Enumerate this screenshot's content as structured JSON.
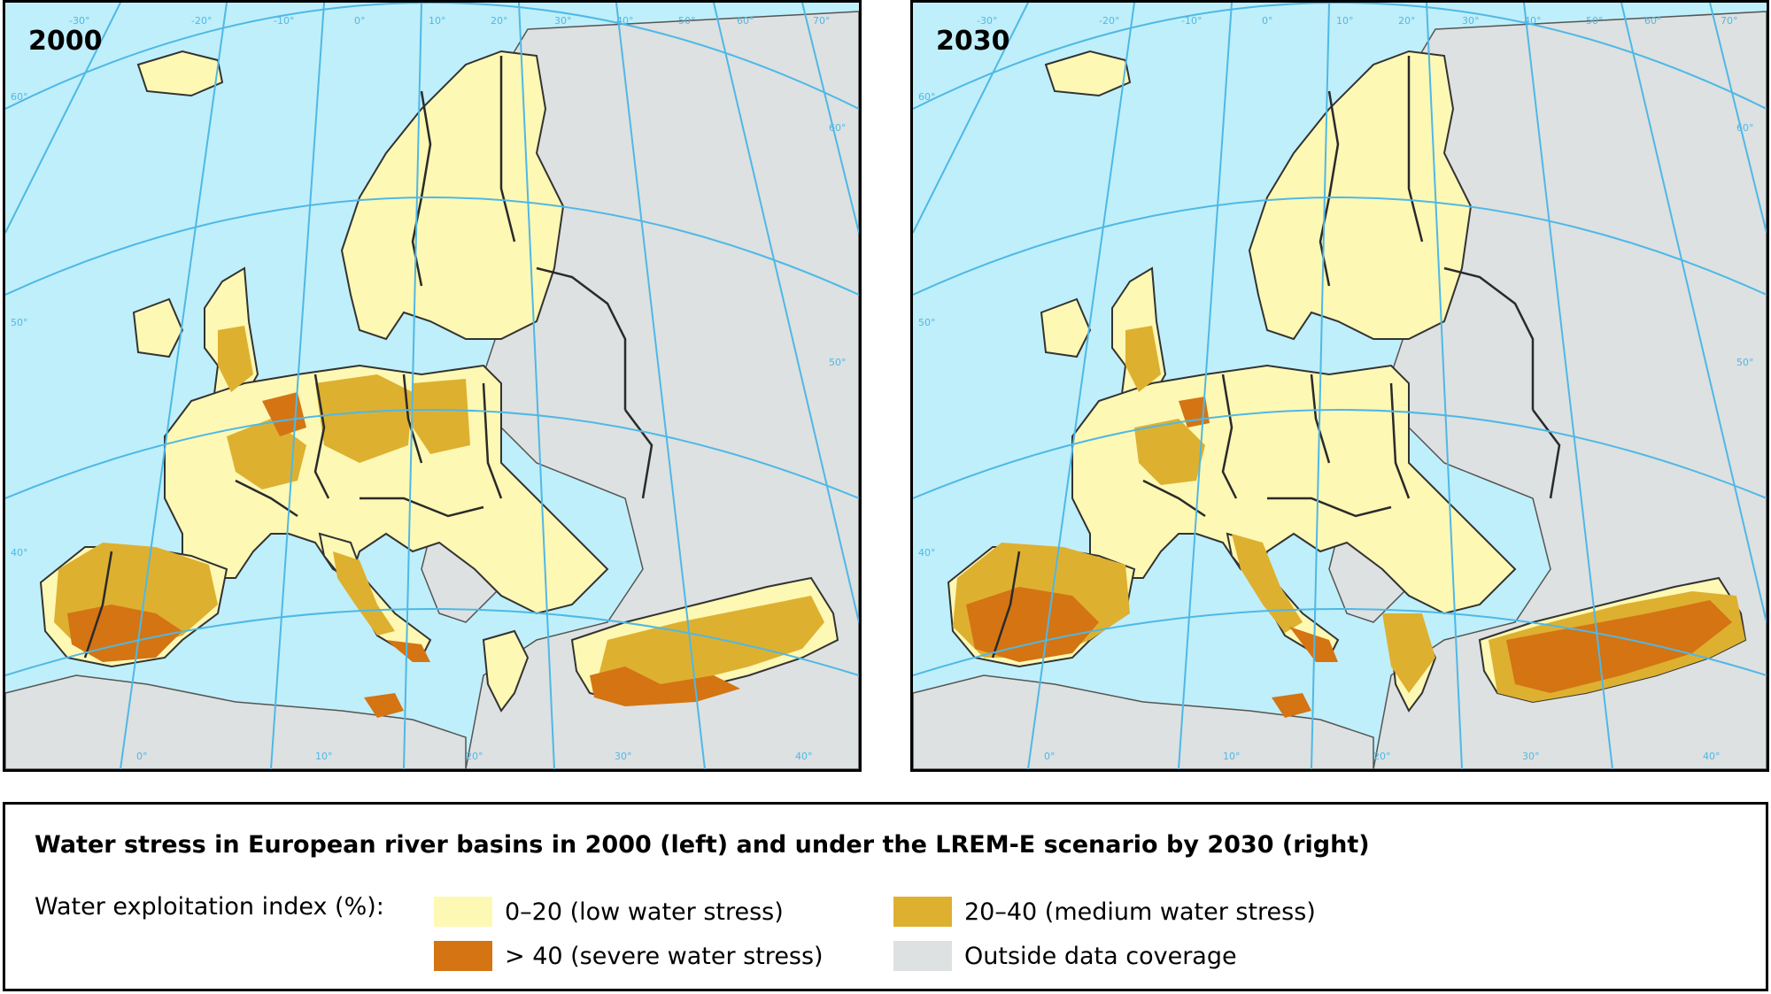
{
  "maps": [
    {
      "year_label": "2000"
    },
    {
      "year_label": "2030"
    }
  ],
  "graticule_labels": {
    "top": [
      "-30°",
      "-20°",
      "-10°",
      "0°",
      "10°",
      "20°",
      "30°",
      "40°",
      "50°",
      "60°",
      "70°"
    ],
    "left": [
      "60°",
      "50°",
      "40°"
    ],
    "right": [
      "60°",
      "50°"
    ],
    "bottom": [
      "0°",
      "10°",
      "20°",
      "30°",
      "40°"
    ]
  },
  "legend": {
    "title": "Water stress in European river basins in 2000 (left) and under the LREM-E scenario by 2030 (right)",
    "index_label": "Water exploitation index (%):",
    "items": [
      {
        "label": "0–20 (low water stress)",
        "color": "#fdf8b4"
      },
      {
        "label": "20–40 (medium water stress)",
        "color": "#deb030"
      },
      {
        "label": "> 40 (severe water stress)",
        "color": "#d47413"
      },
      {
        "label": "Outside data coverage",
        "color": "#dde1e1"
      }
    ]
  },
  "colors": {
    "sea": "#bfeffa",
    "low": "#fdf8b4",
    "medium": "#deb030",
    "severe": "#d47413",
    "outside": "#dde1e1",
    "graticule": "#4fb8e6",
    "border": "#2a2a2a"
  }
}
